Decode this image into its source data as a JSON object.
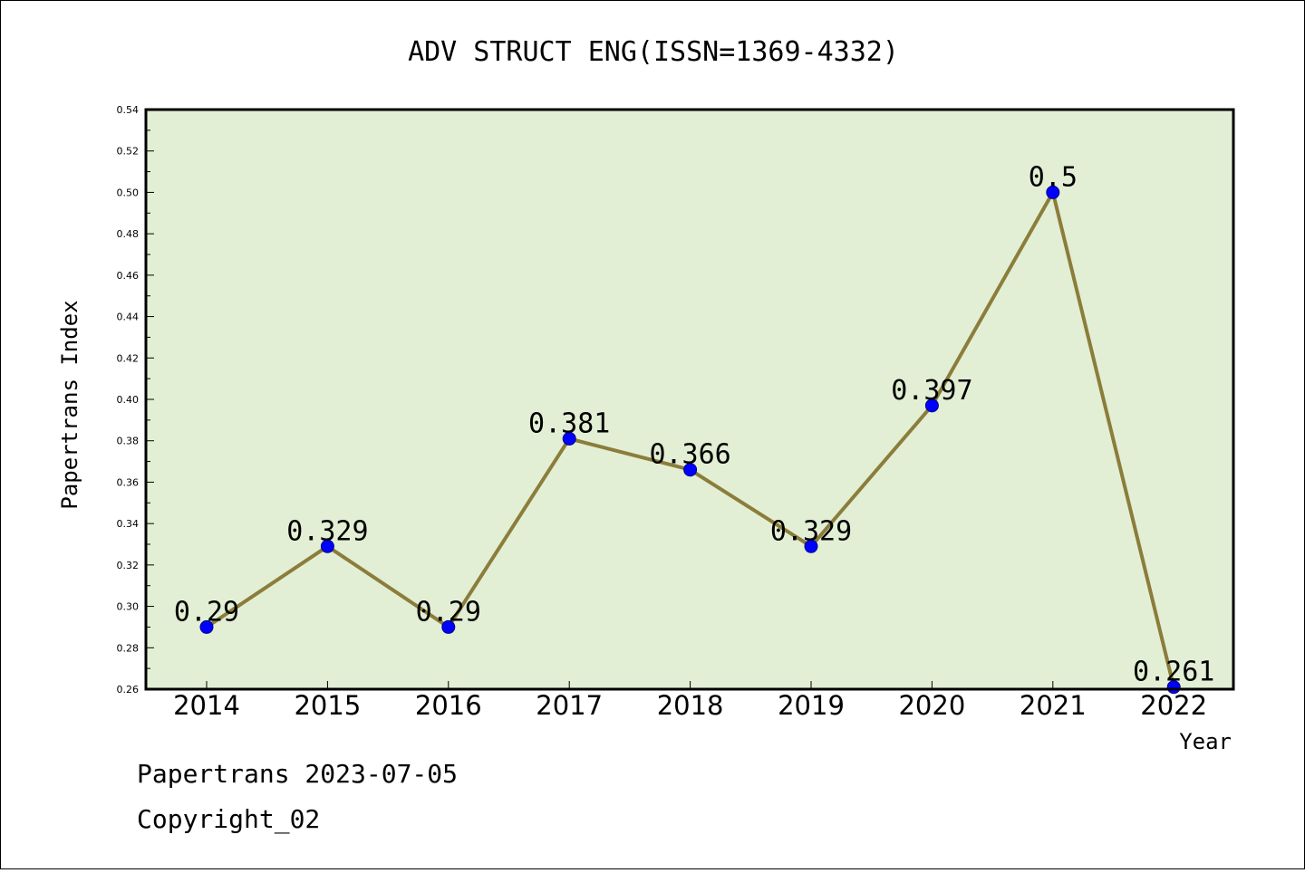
{
  "chart_data": {
    "type": "line",
    "title": "ADV STRUCT ENG(ISSN=1369-4332)",
    "xlabel": "Year",
    "ylabel": "Papertrans Index",
    "ylim": [
      0.26,
      0.54
    ],
    "yticks": [
      "0.26",
      "0.28",
      "0.30",
      "0.32",
      "0.34",
      "0.36",
      "0.38",
      "0.40",
      "0.42",
      "0.44",
      "0.46",
      "0.48",
      "0.50",
      "0.52",
      "0.54"
    ],
    "categories": [
      "2014",
      "2015",
      "2016",
      "2017",
      "2018",
      "2019",
      "2020",
      "2021",
      "2022"
    ],
    "values": [
      0.29,
      0.329,
      0.29,
      0.381,
      0.366,
      0.329,
      0.397,
      0.5,
      0.261
    ],
    "value_labels": [
      "0.29",
      "0.329",
      "0.29",
      "0.381",
      "0.366",
      "0.329",
      "0.397",
      "0.5",
      "0.261"
    ],
    "grid": false,
    "colors": {
      "background": "#e2efd5",
      "line": "#8b7d3a",
      "marker": "#0000ff"
    }
  },
  "footer": {
    "line1": "Papertrans 2023-07-05",
    "line2": "Copyright_02"
  }
}
